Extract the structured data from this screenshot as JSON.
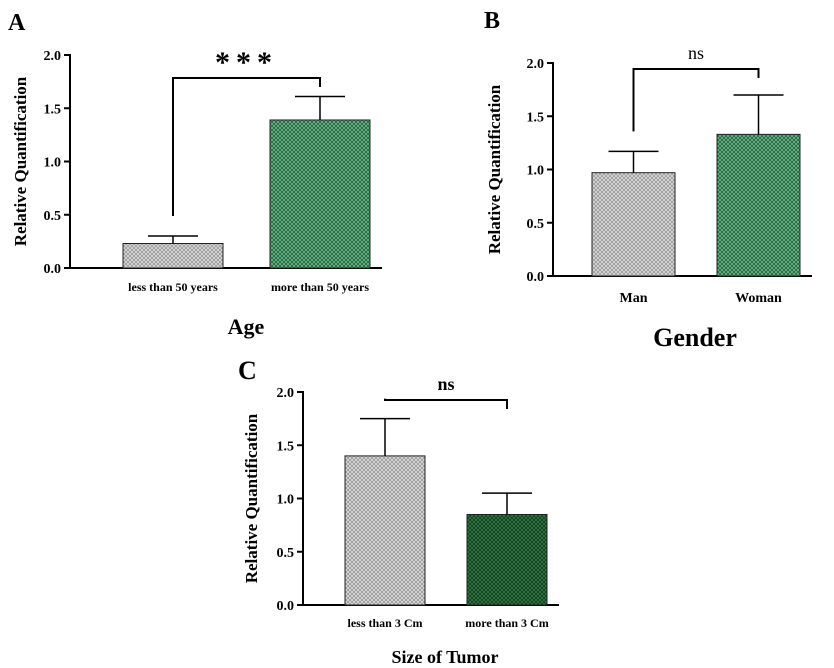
{
  "colors": {
    "gray_fill": "#9a9a9a",
    "gray_hatch": "#e3e3e3",
    "green_fill": "#1f6b3f",
    "green_hatch": "#8fcaa4",
    "dark_green_fill": "#0f4a1f",
    "dark_green_hatch": "#5a8f67",
    "axis": "#000000"
  },
  "chart_data": [
    {
      "panel_label": "A",
      "type": "bar",
      "categories": [
        "less than 50 years",
        "more than 50 years"
      ],
      "values": [
        0.23,
        1.39
      ],
      "errors": [
        0.07,
        0.22
      ],
      "xlabel": "Age",
      "ylabel": "Relative Quantification",
      "ylim": [
        0,
        2.0
      ],
      "yticks": [
        "0.0",
        "0.5",
        "1.0",
        "1.5",
        "2.0"
      ],
      "significance": "***",
      "bar_colors": [
        "gray",
        "green"
      ],
      "grid": false
    },
    {
      "panel_label": "B",
      "type": "bar",
      "categories": [
        "Man",
        "Woman"
      ],
      "values": [
        0.97,
        1.33
      ],
      "errors": [
        0.2,
        0.37
      ],
      "xlabel": "Gender",
      "ylabel": "Relative Quantification",
      "ylim": [
        0,
        2.0
      ],
      "yticks": [
        "0.0",
        "0.5",
        "1.0",
        "1.5",
        "2.0"
      ],
      "significance": "ns",
      "bar_colors": [
        "gray",
        "green"
      ],
      "grid": false
    },
    {
      "panel_label": "C",
      "type": "bar",
      "categories": [
        "less than 3 Cm",
        "more than 3 Cm"
      ],
      "values": [
        1.4,
        0.85
      ],
      "errors": [
        0.35,
        0.2
      ],
      "xlabel": "Size of Tumor",
      "ylabel": "Relative Quantification",
      "ylim": [
        0,
        2.0
      ],
      "yticks": [
        "0.0",
        "0.5",
        "1.0",
        "1.5",
        "2.0"
      ],
      "significance": "ns",
      "bar_colors": [
        "gray",
        "dark_green"
      ],
      "grid": false
    }
  ]
}
